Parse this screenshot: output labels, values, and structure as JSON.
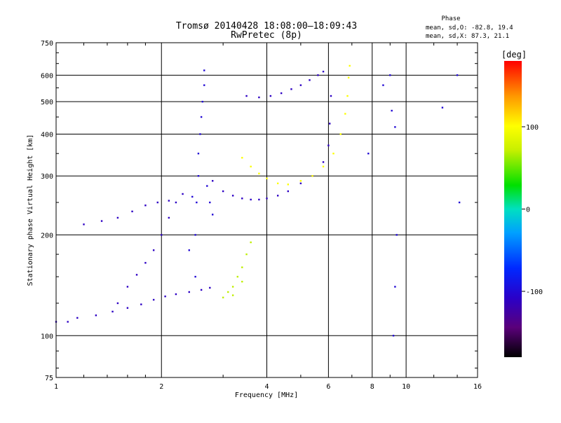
{
  "chart_data": {
    "type": "scatter",
    "title": "Tromsø 20140428 18:08:00–18:09:43",
    "subtitle": "RwPretec (8p)",
    "xlabel": "Frequency [MHz]",
    "ylabel": "Stationary phase Virtual Height [km]",
    "x_scale": "log",
    "y_scale": "log",
    "xlim": [
      1,
      16
    ],
    "ylim": [
      75,
      750
    ],
    "x_ticks": [
      1,
      2,
      4,
      6,
      8,
      10,
      16
    ],
    "y_ticks": [
      75,
      100,
      200,
      300,
      400,
      500,
      600,
      750
    ],
    "grid": true,
    "phase_info": {
      "heading": "Phase",
      "line1": "mean, sd,O: -82.8, 19.4",
      "line2": "mean, sd,X:  87.3, 21.1"
    },
    "colorbar": {
      "label": "[deg]",
      "range": [
        -180,
        180
      ],
      "ticks": [
        {
          "value": 100,
          "label": "100"
        },
        {
          "value": 0,
          "label": "0"
        },
        {
          "value": -100,
          "label": "-100"
        }
      ]
    },
    "series": [
      {
        "trace": "low-trace",
        "points": [
          [
            1.0,
            110
          ],
          [
            1.08,
            110
          ],
          [
            1.15,
            113
          ],
          [
            1.3,
            115
          ],
          [
            1.45,
            118
          ],
          [
            1.6,
            121
          ],
          [
            1.75,
            124
          ],
          [
            1.9,
            128
          ],
          [
            2.05,
            131
          ],
          [
            2.2,
            133
          ],
          [
            2.4,
            135
          ],
          [
            2.6,
            137
          ],
          [
            2.75,
            139
          ]
        ],
        "phase": -110
      },
      {
        "trace": "lower-branch-rise",
        "points": [
          [
            1.5,
            125
          ],
          [
            1.6,
            140
          ],
          [
            1.7,
            152
          ],
          [
            1.8,
            165
          ],
          [
            1.9,
            180
          ],
          [
            2.0,
            200
          ],
          [
            2.1,
            225
          ],
          [
            2.2,
            250
          ],
          [
            2.3,
            265
          ]
        ],
        "phase": -110
      },
      {
        "trace": "upper-left-ledge",
        "points": [
          [
            1.2,
            215
          ],
          [
            1.35,
            220
          ],
          [
            1.5,
            225
          ],
          [
            1.65,
            235
          ],
          [
            1.8,
            245
          ],
          [
            1.95,
            250
          ],
          [
            2.1,
            253
          ]
        ],
        "phase": -110
      },
      {
        "trace": "main-cluster",
        "points": [
          [
            2.5,
            150
          ],
          [
            2.5,
            200
          ],
          [
            2.52,
            250
          ],
          [
            2.55,
            300
          ],
          [
            2.55,
            350
          ],
          [
            2.58,
            400
          ],
          [
            2.6,
            450
          ],
          [
            2.62,
            500
          ],
          [
            2.65,
            560
          ],
          [
            2.65,
            620
          ],
          [
            2.7,
            280
          ],
          [
            2.75,
            250
          ],
          [
            2.8,
            230
          ],
          [
            2.4,
            180
          ],
          [
            2.45,
            260
          ]
        ],
        "phase": -100
      },
      {
        "trace": "f2o-trace",
        "points": [
          [
            2.8,
            290
          ],
          [
            3.0,
            270
          ],
          [
            3.2,
            262
          ],
          [
            3.4,
            257
          ],
          [
            3.6,
            255
          ],
          [
            3.8,
            255
          ],
          [
            4.0,
            257
          ],
          [
            4.3,
            262
          ],
          [
            4.6,
            270
          ],
          [
            5.0,
            285
          ],
          [
            5.4,
            300
          ],
          [
            5.8,
            330
          ],
          [
            6.0,
            370
          ],
          [
            6.05,
            430
          ],
          [
            6.1,
            520
          ]
        ],
        "phase": -110
      },
      {
        "trace": "f2x-trace",
        "points": [
          [
            3.4,
            340
          ],
          [
            3.6,
            320
          ],
          [
            3.8,
            305
          ],
          [
            4.0,
            295
          ],
          [
            4.3,
            285
          ],
          [
            4.6,
            283
          ],
          [
            5.0,
            290
          ],
          [
            5.4,
            300
          ],
          [
            5.8,
            320
          ],
          [
            6.2,
            350
          ],
          [
            6.5,
            400
          ],
          [
            6.7,
            460
          ],
          [
            6.8,
            520
          ],
          [
            6.85,
            590
          ],
          [
            6.9,
            640
          ]
        ],
        "phase": 100
      },
      {
        "trace": "upper-arc",
        "points": [
          [
            3.5,
            520
          ],
          [
            3.8,
            515
          ],
          [
            4.1,
            520
          ],
          [
            4.4,
            530
          ],
          [
            4.7,
            545
          ],
          [
            5.0,
            560
          ],
          [
            5.3,
            580
          ],
          [
            5.6,
            600
          ],
          [
            5.8,
            615
          ]
        ],
        "phase": -110
      },
      {
        "trace": "mid-yellow-cluster",
        "points": [
          [
            3.0,
            130
          ],
          [
            3.1,
            135
          ],
          [
            3.2,
            140
          ],
          [
            3.3,
            150
          ],
          [
            3.4,
            160
          ],
          [
            3.5,
            175
          ],
          [
            3.6,
            190
          ],
          [
            3.2,
            132
          ],
          [
            3.4,
            145
          ]
        ],
        "phase": 70
      },
      {
        "trace": "scatter-right",
        "points": [
          [
            9.2,
            100
          ],
          [
            9.3,
            140
          ],
          [
            9.4,
            200
          ],
          [
            9.1,
            470
          ],
          [
            9.3,
            420
          ],
          [
            9.0,
            600
          ],
          [
            12.7,
            480
          ],
          [
            14.2,
            250
          ],
          [
            14.0,
            600
          ],
          [
            8.6,
            560
          ],
          [
            7.8,
            350
          ]
        ],
        "phase": -100
      }
    ]
  }
}
